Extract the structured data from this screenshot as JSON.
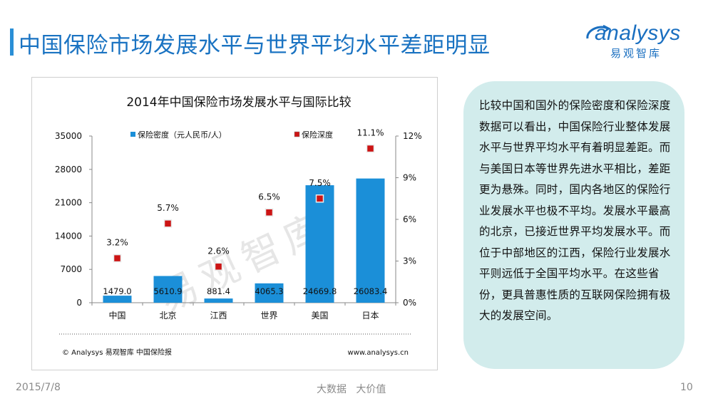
{
  "slide": {
    "title": "中国保险市场发展水平与世界平均水平差距明显",
    "logo_text": "analysys",
    "logo_sub": "易观智库",
    "body": "比较中国和国外的保险密度和保险深度数据可以看出，中国保险行业整体发展水平与世界平均水平有着明显差距。而与美国日本等世界先进水平相比，差距更为悬殊。同时，国内各地区的保险行业发展水平也极不平均。发展水平最高的北京，已接近世界平均发展水平。而位于中部地区的江西，保险行业发展水平则远低于全国平均水平。在这些省份，更具普惠性质的互联网保险拥有极大的发展空间。",
    "date": "2015/7/8",
    "slogan": "大数据   大价值",
    "page_number": "10",
    "watermark": "易观智库"
  },
  "chart_data": {
    "type": "bar",
    "title": "2014年中国保险市场发展水平与国际比较",
    "categories": [
      "中国",
      "北京",
      "江西",
      "世界",
      "美国",
      "日本"
    ],
    "series": [
      {
        "name": "保险密度（元人民币/人）",
        "type": "bar",
        "axis": "left",
        "values": [
          1479.0,
          5610.9,
          881.4,
          4065.3,
          24669.8,
          26083.4
        ],
        "labels": [
          "1479.0",
          "5610.9",
          "881.4",
          "4065.3",
          "24669.8",
          "26083.4"
        ],
        "color": "#1b8fd8"
      },
      {
        "name": "保险深度",
        "type": "scatter",
        "axis": "right",
        "values": [
          3.2,
          5.7,
          2.6,
          6.5,
          7.5,
          11.1
        ],
        "labels": [
          "3.2%",
          "5.7%",
          "2.6%",
          "6.5%",
          "7.5%",
          "11.1%"
        ],
        "color": "#cc1414"
      }
    ],
    "y_left": {
      "ticks": [
        "0",
        "7000",
        "14000",
        "21000",
        "28000",
        "35000"
      ],
      "range": [
        0,
        35000
      ]
    },
    "y_right": {
      "ticks": [
        "0%",
        "3%",
        "6%",
        "9%",
        "12%"
      ],
      "range": [
        0,
        12
      ]
    },
    "legend_position": "top",
    "source": "© Analysys 易观智库 中国保险报",
    "url": "www.analysys.cn"
  }
}
